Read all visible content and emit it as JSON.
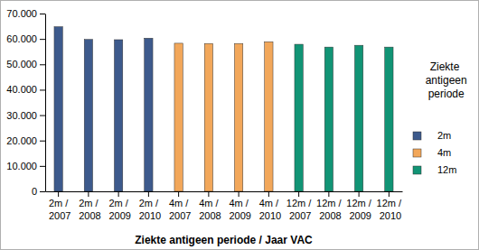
{
  "chart_data": {
    "type": "bar",
    "x_label": "Ziekte antigeen periode / Jaar VAC",
    "legend_title": "Ziekte antigeen periode",
    "legend": "right",
    "grid": false,
    "categories": [
      "2m / 2007",
      "2m / 2008",
      "2m / 2009",
      "2m / 2010",
      "4m / 2007",
      "4m / 2008",
      "4m / 2009",
      "4m / 2010",
      "12m / 2007",
      "12m / 2008",
      "12m / 2009",
      "12m / 2010"
    ],
    "series": [
      {
        "name": "2m",
        "color": "#3d5a8c",
        "values": [
          64800,
          59800,
          59700,
          60300,
          null,
          null,
          null,
          null,
          null,
          null,
          null,
          null
        ]
      },
      {
        "name": "4m",
        "color": "#f2a75a",
        "values": [
          null,
          null,
          null,
          null,
          58300,
          58200,
          58200,
          58900,
          null,
          null,
          null,
          null
        ]
      },
      {
        "name": "12m",
        "color": "#119475",
        "values": [
          null,
          null,
          null,
          null,
          null,
          null,
          null,
          null,
          57900,
          56800,
          57500,
          56800
        ]
      }
    ],
    "ylim": [
      0,
      70000
    ],
    "yticks": [
      0,
      {
        "value": 10000,
        "label": "10.000"
      },
      {
        "value": 20000,
        "label": "20.000"
      },
      {
        "value": 30000,
        "label": "30.000"
      },
      {
        "value": 40000,
        "label": "40.000"
      },
      {
        "value": 50000,
        "label": "50.000"
      },
      {
        "value": 60000,
        "label": "60.000"
      },
      {
        "value": 70000,
        "label": "70.000"
      }
    ]
  }
}
